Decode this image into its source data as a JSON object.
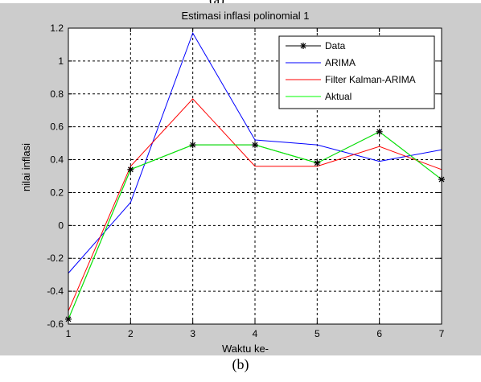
{
  "figure_top_cut_text": "(a)",
  "caption": "(b)",
  "chart_data": {
    "type": "line",
    "title": "Estimasi inflasi polinomial 1",
    "xlabel": "Waktu ke-",
    "ylabel": "nilai inflasi",
    "x": [
      1,
      2,
      3,
      4,
      5,
      6,
      7
    ],
    "xlim": [
      1,
      7
    ],
    "ylim": [
      -0.6,
      1.2
    ],
    "xticks": [
      "1",
      "2",
      "3",
      "4",
      "5",
      "6",
      "7"
    ],
    "yticks": [
      "-0.6",
      "-0.4",
      "-0.2",
      "0",
      "0.2",
      "0.4",
      "0.6",
      "0.8",
      "1",
      "1.2"
    ],
    "grid": true,
    "legend_position": "top-right",
    "series": [
      {
        "name": "Data",
        "color": "#000000",
        "marker": "asterisk",
        "values": [
          -0.57,
          0.34,
          0.49,
          0.49,
          0.38,
          0.57,
          0.28
        ]
      },
      {
        "name": "ARIMA",
        "color": "#0000ff",
        "marker": "none",
        "values": [
          -0.29,
          0.14,
          1.17,
          0.52,
          0.49,
          0.39,
          0.46
        ]
      },
      {
        "name": "Filter Kalman-ARIMA",
        "color": "#ff0000",
        "marker": "none",
        "values": [
          -0.52,
          0.36,
          0.77,
          0.36,
          0.36,
          0.48,
          0.34
        ]
      },
      {
        "name": "Aktual",
        "color": "#00ff00",
        "marker": "none",
        "values": [
          -0.57,
          0.34,
          0.49,
          0.49,
          0.38,
          0.57,
          0.28
        ]
      }
    ]
  }
}
